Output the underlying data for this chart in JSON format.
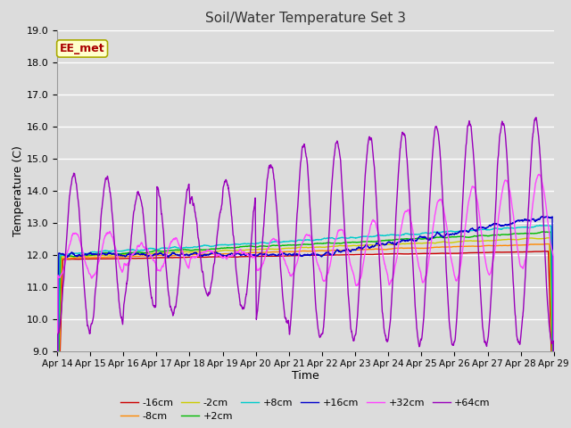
{
  "title": "Soil/Water Temperature Set 3",
  "xlabel": "Time",
  "ylabel": "Temperature (C)",
  "ylim": [
    9.0,
    19.0
  ],
  "yticks": [
    9.0,
    10.0,
    11.0,
    12.0,
    13.0,
    14.0,
    15.0,
    16.0,
    17.0,
    18.0,
    19.0
  ],
  "background_color": "#dcdcdc",
  "plot_bg_color": "#dcdcdc",
  "grid_color": "#ffffff",
  "series_colors": {
    "-16cm": "#cc0000",
    "-8cm": "#ff8800",
    "-2cm": "#cccc00",
    "+2cm": "#00bb00",
    "+8cm": "#00cccc",
    "+16cm": "#0000cc",
    "+32cm": "#ff44ff",
    "+64cm": "#9900bb"
  },
  "legend_label": "EE_met",
  "legend_box_color": "#ffffcc",
  "legend_box_border": "#aaaa00",
  "legend_text_color": "#aa0000"
}
